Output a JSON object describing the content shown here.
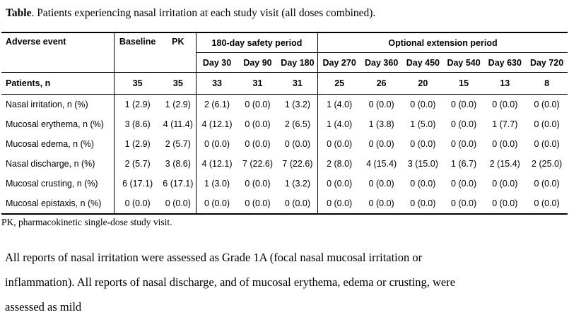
{
  "title": {
    "label": "Table",
    "text": ". Patients experiencing nasal irritation at each study visit (all doses combined)."
  },
  "table": {
    "col1_header": "Adverse event",
    "baseline_header": "Baseline",
    "pk_header": "PK",
    "group_headers": [
      "180-day safety period",
      "Optional extension period"
    ],
    "day_headers": [
      "Day 30",
      "Day 90",
      "Day 180",
      "Day 270",
      "Day 360",
      "Day 450",
      "Day 540",
      "Day 630",
      "Day 720"
    ],
    "patients_row": {
      "label": "Patients, n",
      "values": [
        "35",
        "35",
        "33",
        "31",
        "31",
        "25",
        "26",
        "20",
        "15",
        "13",
        "8"
      ]
    },
    "rows": [
      {
        "label": "Nasal irritation, n (%)",
        "values": [
          "1 (2.9)",
          "1 (2.9)",
          "2 (6.1)",
          "0 (0.0)",
          "1 (3.2)",
          "1 (4.0)",
          "0 (0.0)",
          "0 (0.0)",
          "0 (0.0)",
          "0 (0.0)",
          "0 (0.0)"
        ]
      },
      {
        "label": "Mucosal erythema, n (%)",
        "values": [
          "3 (8.6)",
          "4 (11.4)",
          "4 (12.1)",
          "0 (0.0)",
          "2 (6.5)",
          "1 (4.0)",
          "1 (3.8)",
          "1 (5.0)",
          "0 (0.0)",
          "1 (7.7)",
          "0 (0.0)"
        ]
      },
      {
        "label": "Mucosal edema, n (%)",
        "values": [
          "1 (2.9)",
          "2 (5.7)",
          "0 (0.0)",
          "0 (0.0)",
          "0 (0.0)",
          "0 (0.0)",
          "0 (0.0)",
          "0 (0.0)",
          "0 (0.0)",
          "0 (0.0)",
          "0 (0.0)"
        ]
      },
      {
        "label": "Nasal discharge, n (%)",
        "values": [
          "2 (5.7)",
          "3 (8.6)",
          "4 (12.1)",
          "7 (22.6)",
          "7 (22.6)",
          "2 (8.0)",
          "4 (15.4)",
          "3 (15.0)",
          "1 (6.7)",
          "2 (15.4)",
          "2 (25.0)"
        ]
      },
      {
        "label": "Mucosal crusting, n (%)",
        "values": [
          "6 (17.1)",
          "6 (17.1)",
          "1 (3.0)",
          "0 (0.0)",
          "1 (3.2)",
          "0 (0.0)",
          "0 (0.0)",
          "0 (0.0)",
          "0 (0.0)",
          "0 (0.0)",
          "0 (0.0)"
        ]
      },
      {
        "label": "Mucosal epistaxis, n (%)",
        "values": [
          "0 (0.0)",
          "0 (0.0)",
          "0 (0.0)",
          "0 (0.0)",
          "0 (0.0)",
          "0 (0.0)",
          "0 (0.0)",
          "0 (0.0)",
          "0 (0.0)",
          "0 (0.0)",
          "0 (0.0)"
        ]
      }
    ],
    "footnote": "PK, pharmacokinetic single-dose study visit."
  },
  "paragraph": {
    "lines": [
      "All reports of nasal irritation were assessed as Grade 1A (focal nasal mucosal irritation or",
      "inflammation). All reports of nasal discharge, and of mucosal erythema, edema or crusting, were",
      "assessed as mild"
    ]
  }
}
